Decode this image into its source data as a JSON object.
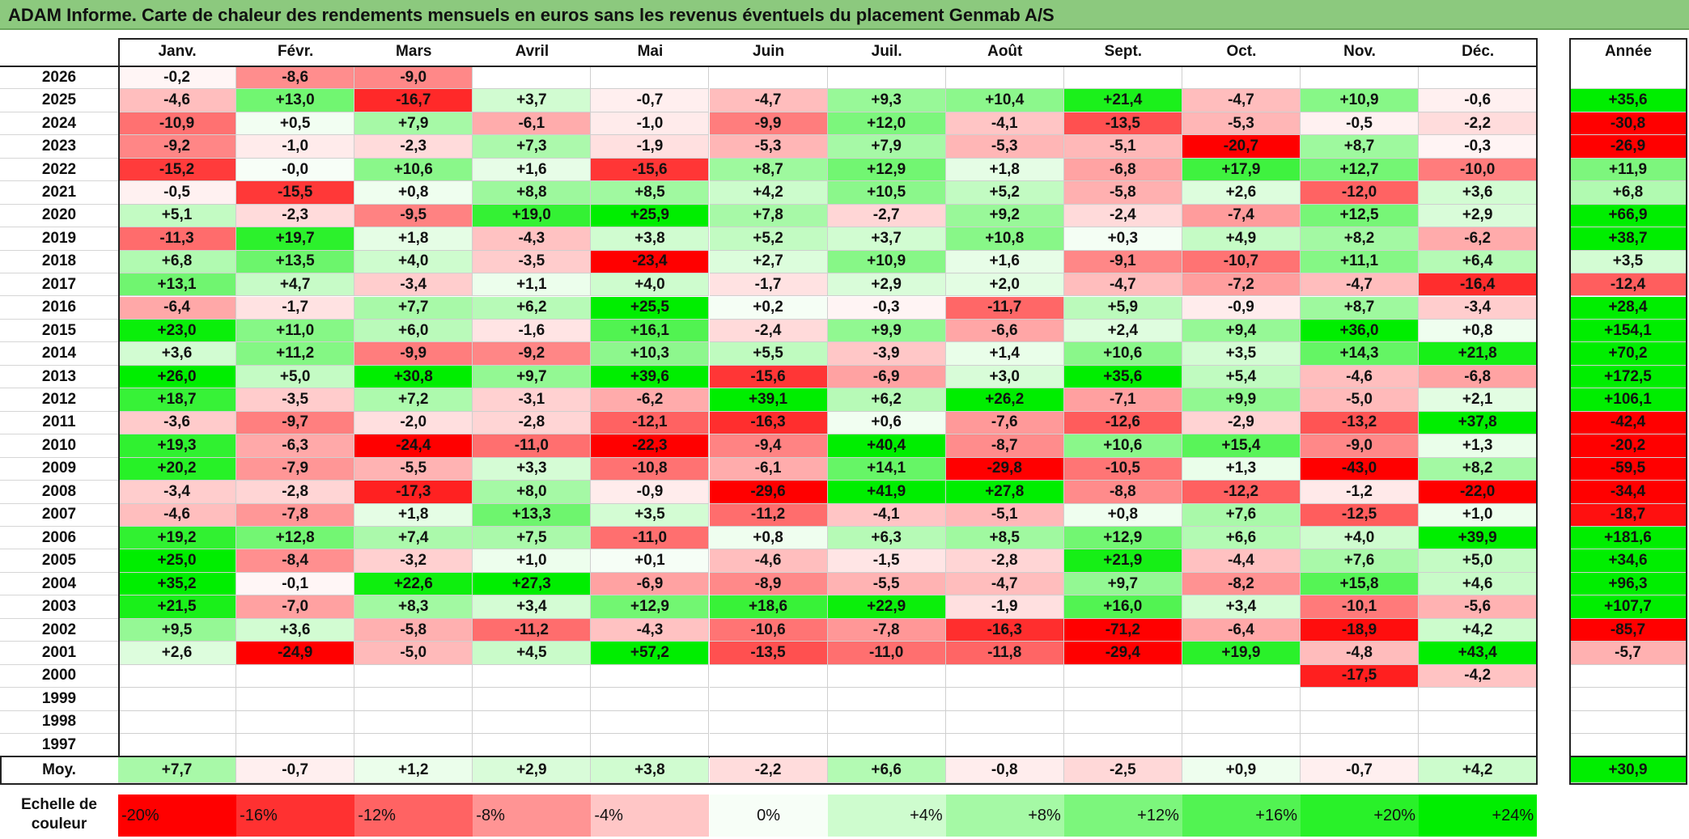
{
  "title": "ADAM Informe. Carte de chaleur des rendements mensuels en euros sans les revenus éventuels du placement Genmab A/S",
  "colors": {
    "strong_red": "#ff0000",
    "white": "#ffffff",
    "strong_green": "#00ee00",
    "title_bg": "#8cc97e"
  },
  "chart_data": {
    "type": "heatmap",
    "title": "ADAM Informe. Carte de chaleur des rendements mensuels en euros sans les revenus éventuels du placement Genmab A/S",
    "months": [
      "Janv.",
      "Févr.",
      "Mars",
      "Avril",
      "Mai",
      "Juin",
      "Juil.",
      "Août",
      "Sept.",
      "Oct.",
      "Nov.",
      "Déc."
    ],
    "year_header": "Année",
    "rows": [
      {
        "year": "2026",
        "values": [
          "-0,2",
          "-8,6",
          "-9,0",
          "",
          "",
          "",
          "",
          "",
          "",
          "",
          "",
          ""
        ],
        "annual": ""
      },
      {
        "year": "2025",
        "values": [
          "-4,6",
          "+13,0",
          "-16,7",
          "+3,7",
          "-0,7",
          "-4,7",
          "+9,3",
          "+10,4",
          "+21,4",
          "-4,7",
          "+10,9",
          "-0,6"
        ],
        "annual": "+35,6"
      },
      {
        "year": "2024",
        "values": [
          "-10,9",
          "+0,5",
          "+7,9",
          "-6,1",
          "-1,0",
          "-9,9",
          "+12,0",
          "-4,1",
          "-13,5",
          "-5,3",
          "-0,5",
          "-2,2"
        ],
        "annual": "-30,8"
      },
      {
        "year": "2023",
        "values": [
          "-9,2",
          "-1,0",
          "-2,3",
          "+7,3",
          "-1,9",
          "-5,3",
          "+7,9",
          "-5,3",
          "-5,1",
          "-20,7",
          "+8,7",
          "-0,3"
        ],
        "annual": "-26,9"
      },
      {
        "year": "2022",
        "values": [
          "-15,2",
          "-0,0",
          "+10,6",
          "+1,6",
          "-15,6",
          "+8,7",
          "+12,9",
          "+1,8",
          "-6,8",
          "+17,9",
          "+12,7",
          "-10,0"
        ],
        "annual": "+11,9"
      },
      {
        "year": "2021",
        "values": [
          "-0,5",
          "-15,5",
          "+0,8",
          "+8,8",
          "+8,5",
          "+4,2",
          "+10,5",
          "+5,2",
          "-5,8",
          "+2,6",
          "-12,0",
          "+3,6"
        ],
        "annual": "+6,8"
      },
      {
        "year": "2020",
        "values": [
          "+5,1",
          "-2,3",
          "-9,5",
          "+19,0",
          "+25,9",
          "+7,8",
          "-2,7",
          "+9,2",
          "-2,4",
          "-7,4",
          "+12,5",
          "+2,9"
        ],
        "annual": "+66,9"
      },
      {
        "year": "2019",
        "values": [
          "-11,3",
          "+19,7",
          "+1,8",
          "-4,3",
          "+3,8",
          "+5,2",
          "+3,7",
          "+10,8",
          "+0,3",
          "+4,9",
          "+8,2",
          "-6,2"
        ],
        "annual": "+38,7"
      },
      {
        "year": "2018",
        "values": [
          "+6,8",
          "+13,5",
          "+4,0",
          "-3,5",
          "-23,4",
          "+2,7",
          "+10,9",
          "+1,6",
          "-9,1",
          "-10,7",
          "+11,1",
          "+6,4"
        ],
        "annual": "+3,5"
      },
      {
        "year": "2017",
        "values": [
          "+13,1",
          "+4,7",
          "-3,4",
          "+1,1",
          "+4,0",
          "-1,7",
          "+2,9",
          "+2,0",
          "-4,7",
          "-7,2",
          "-4,7",
          "-16,4"
        ],
        "annual": "-12,4"
      },
      {
        "year": "2016",
        "values": [
          "-6,4",
          "-1,7",
          "+7,7",
          "+6,2",
          "+25,5",
          "+0,2",
          "-0,3",
          "-11,7",
          "+5,9",
          "-0,9",
          "+8,7",
          "-3,4"
        ],
        "annual": "+28,4"
      },
      {
        "year": "2015",
        "values": [
          "+23,0",
          "+11,0",
          "+6,0",
          "-1,6",
          "+16,1",
          "-2,4",
          "+9,9",
          "-6,6",
          "+2,4",
          "+9,4",
          "+36,0",
          "+0,8"
        ],
        "annual": "+154,1"
      },
      {
        "year": "2014",
        "values": [
          "+3,6",
          "+11,2",
          "-9,9",
          "-9,2",
          "+10,3",
          "+5,5",
          "-3,9",
          "+1,4",
          "+10,6",
          "+3,5",
          "+14,3",
          "+21,8"
        ],
        "annual": "+70,2"
      },
      {
        "year": "2013",
        "values": [
          "+26,0",
          "+5,0",
          "+30,8",
          "+9,7",
          "+39,6",
          "-15,6",
          "-6,9",
          "+3,0",
          "+35,6",
          "+5,4",
          "-4,6",
          "-6,8"
        ],
        "annual": "+172,5"
      },
      {
        "year": "2012",
        "values": [
          "+18,7",
          "-3,5",
          "+7,2",
          "-3,1",
          "-6,2",
          "+39,1",
          "+6,2",
          "+26,2",
          "-7,1",
          "+9,9",
          "-5,0",
          "+2,1"
        ],
        "annual": "+106,1"
      },
      {
        "year": "2011",
        "values": [
          "-3,6",
          "-9,7",
          "-2,0",
          "-2,8",
          "-12,1",
          "-16,3",
          "+0,6",
          "-7,6",
          "-12,6",
          "-2,9",
          "-13,2",
          "+37,8"
        ],
        "annual": "-42,4"
      },
      {
        "year": "2010",
        "values": [
          "+19,3",
          "-6,3",
          "-24,4",
          "-11,0",
          "-22,3",
          "-9,4",
          "+40,4",
          "-8,7",
          "+10,6",
          "+15,4",
          "-9,0",
          "+1,3"
        ],
        "annual": "-20,2"
      },
      {
        "year": "2009",
        "values": [
          "+20,2",
          "-7,9",
          "-5,5",
          "+3,3",
          "-10,8",
          "-6,1",
          "+14,1",
          "-29,8",
          "-10,5",
          "+1,3",
          "-43,0",
          "+8,2"
        ],
        "annual": "-59,5"
      },
      {
        "year": "2008",
        "values": [
          "-3,4",
          "-2,8",
          "-17,3",
          "+8,0",
          "-0,9",
          "-29,6",
          "+41,9",
          "+27,8",
          "-8,8",
          "-12,2",
          "-1,2",
          "-22,0"
        ],
        "annual": "-34,4"
      },
      {
        "year": "2007",
        "values": [
          "-4,6",
          "-7,8",
          "+1,8",
          "+13,3",
          "+3,5",
          "-11,2",
          "-4,1",
          "-5,1",
          "+0,8",
          "+7,6",
          "-12,5",
          "+1,0"
        ],
        "annual": "-18,7"
      },
      {
        "year": "2006",
        "values": [
          "+19,2",
          "+12,8",
          "+7,4",
          "+7,5",
          "-11,0",
          "+0,8",
          "+6,3",
          "+8,5",
          "+12,9",
          "+6,6",
          "+4,0",
          "+39,9"
        ],
        "annual": "+181,6"
      },
      {
        "year": "2005",
        "values": [
          "+25,0",
          "-8,4",
          "-3,2",
          "+1,0",
          "+0,1",
          "-4,6",
          "-1,5",
          "-2,8",
          "+21,9",
          "-4,4",
          "+7,6",
          "+5,0"
        ],
        "annual": "+34,6"
      },
      {
        "year": "2004",
        "values": [
          "+35,2",
          "-0,1",
          "+22,6",
          "+27,3",
          "-6,9",
          "-8,9",
          "-5,5",
          "-4,7",
          "+9,7",
          "-8,2",
          "+15,8",
          "+4,6"
        ],
        "annual": "+96,3"
      },
      {
        "year": "2003",
        "values": [
          "+21,5",
          "-7,0",
          "+8,3",
          "+3,4",
          "+12,9",
          "+18,6",
          "+22,9",
          "-1,9",
          "+16,0",
          "+3,4",
          "-10,1",
          "-5,6"
        ],
        "annual": "+107,7"
      },
      {
        "year": "2002",
        "values": [
          "+9,5",
          "+3,6",
          "-5,8",
          "-11,2",
          "-4,3",
          "-10,6",
          "-7,8",
          "-16,3",
          "-71,2",
          "-6,4",
          "-18,9",
          "+4,2"
        ],
        "annual": "-85,7"
      },
      {
        "year": "2001",
        "values": [
          "+2,6",
          "-24,9",
          "-5,0",
          "+4,5",
          "+57,2",
          "-13,5",
          "-11,0",
          "-11,8",
          "-29,4",
          "+19,9",
          "-4,8",
          "+43,4"
        ],
        "annual": "-5,7"
      },
      {
        "year": "2000",
        "values": [
          "",
          "",
          "",
          "",
          "",
          "",
          "",
          "",
          "",
          "",
          "-17,5",
          "-4,2"
        ],
        "annual": ""
      },
      {
        "year": "1999",
        "values": [
          "",
          "",
          "",
          "",
          "",
          "",
          "",
          "",
          "",
          "",
          "",
          ""
        ],
        "annual": ""
      },
      {
        "year": "1998",
        "values": [
          "",
          "",
          "",
          "",
          "",
          "",
          "",
          "",
          "",
          "",
          "",
          ""
        ],
        "annual": ""
      },
      {
        "year": "1997",
        "values": [
          "",
          "",
          "",
          "",
          "",
          "",
          "",
          "",
          "",
          "",
          "",
          ""
        ],
        "annual": ""
      }
    ],
    "average": {
      "label": "Moy.",
      "values": [
        "+7,7",
        "-0,7",
        "+1,2",
        "+2,9",
        "+3,8",
        "-2,2",
        "+6,6",
        "-0,8",
        "-2,5",
        "+0,9",
        "-0,7",
        "+4,2"
      ],
      "annual": "+30,9"
    },
    "color_scale": {
      "label": "Echelle de couleur",
      "stops": [
        "-20%",
        "-16%",
        "-12%",
        "-8%",
        "-4%",
        "0%",
        "+4%",
        "+8%",
        "+12%",
        "+16%",
        "+20%",
        "+24%"
      ]
    }
  }
}
